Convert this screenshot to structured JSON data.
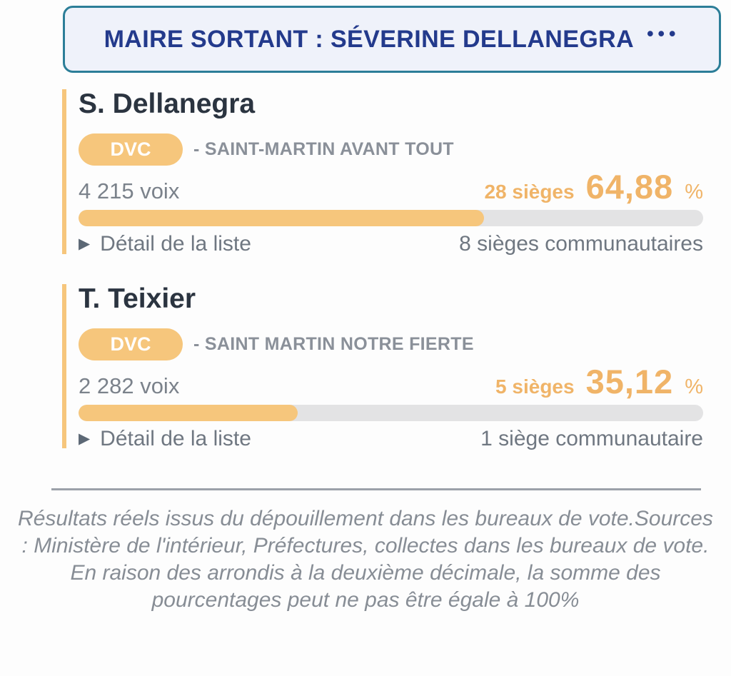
{
  "banner": {
    "label": "MAIRE SORTANT : SÉVERINE DELLANEGRA",
    "menu_dots": "•••"
  },
  "icons": {
    "triangle_right": "▶"
  },
  "candidates": [
    {
      "name": "S. Dellanegra",
      "party_code": "DVC",
      "list_name": "- SAINT-MARTIN AVANT TOUT",
      "votes": "4 215 voix",
      "seats": "28 sièges",
      "percent": "64,88",
      "percent_symbol": "%",
      "percent_value": 64.88,
      "detail_label": "Détail de la liste",
      "community_seats": "8 sièges communautaires"
    },
    {
      "name": "T. Teixier",
      "party_code": "DVC",
      "list_name": "- SAINT MARTIN NOTRE FIERTE",
      "votes": "2 282 voix",
      "seats": "5 sièges",
      "percent": "35,12",
      "percent_symbol": "%",
      "percent_value": 35.12,
      "detail_label": "Détail de la liste",
      "community_seats": "1 siège communautaire"
    }
  ],
  "footer": {
    "disclaimer": "Résultats réels issus du dépouillement dans les bureaux de vote.Sources : Ministère de l'intérieur, Préfectures, collectes dans les bureaux de vote. En raison des arrondis à la deuxième décimale, la somme des pourcentages peut ne pas être égale à 100%"
  },
  "colors": {
    "accent_orange": "#f6c67c",
    "orange_text": "#f0b468",
    "track_gray": "#e3e3e4",
    "banner_border": "#2c7e98",
    "banner_bg": "#eff2fa",
    "banner_text": "#233a8c",
    "name_text": "#2b3440",
    "gray_text": "#7b828b",
    "gray_text2": "#6f7781",
    "label_gray": "#8a9099",
    "footer_gray": "#878d95",
    "divider_gray": "#9ba1a9"
  }
}
